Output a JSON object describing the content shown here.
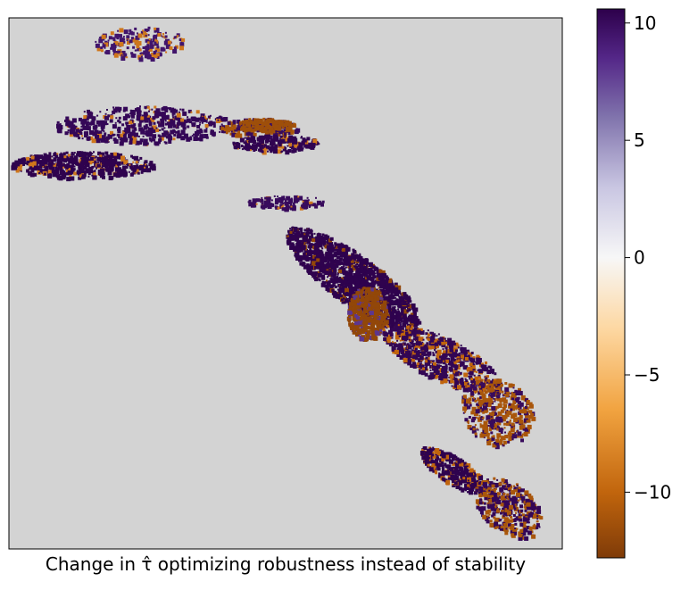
{
  "chart_data": {
    "type": "heatmap",
    "title": "",
    "xlabel_prefix": "Change in ",
    "xlabel_symbol": "τ̂",
    "xlabel_suffix": " optimizing robustness instead of stability",
    "ylabel": "",
    "background_color": "#d3d3d3",
    "colormap": "PuOr",
    "colorbar": {
      "vmin": -12.8,
      "vmax": 10.6,
      "ticks": [
        10,
        5,
        0,
        -5,
        -10
      ],
      "tick_labels": [
        "10",
        "5",
        "0",
        "−5",
        "−10"
      ],
      "colors": [
        {
          "value": -12.8,
          "color": "#7f3b08"
        },
        {
          "value": -10.0,
          "color": "#c1650d"
        },
        {
          "value": -6.5,
          "color": "#f1a340"
        },
        {
          "value": -3.0,
          "color": "#fdd8a3"
        },
        {
          "value": 0.0,
          "color": "#f7f7f7"
        },
        {
          "value": 3.0,
          "color": "#c9c6e2"
        },
        {
          "value": 6.0,
          "color": "#8073ac"
        },
        {
          "value": 8.5,
          "color": "#542788"
        },
        {
          "value": 10.6,
          "color": "#2d004b"
        }
      ]
    },
    "regions": [
      {
        "name": "north-patch",
        "cx": 0.235,
        "cy": 0.045,
        "rx": 0.08,
        "ry": 0.03,
        "angle": 0,
        "n": 220,
        "value_positive": 9.5,
        "value_negative": -9.0,
        "neg_fraction": 0.35
      },
      {
        "name": "upper-ridge",
        "cx": 0.24,
        "cy": 0.2,
        "rx": 0.16,
        "ry": 0.035,
        "angle": 0,
        "n": 520,
        "value_positive": 10.2,
        "value_negative": -9.0,
        "neg_fraction": 0.12
      },
      {
        "name": "upper-east",
        "cx": 0.45,
        "cy": 0.205,
        "rx": 0.07,
        "ry": 0.018,
        "angle": 0,
        "n": 200,
        "value_positive": 10.0,
        "value_negative": -11.0,
        "neg_fraction": 0.45
      },
      {
        "name": "east-orange",
        "cx": 0.46,
        "cy": 0.2,
        "rx": 0.05,
        "ry": 0.012,
        "angle": 0,
        "n": 160,
        "value_positive": 9.8,
        "value_negative": -11.5,
        "neg_fraction": 0.9
      },
      {
        "name": "east-streak",
        "cx": 0.48,
        "cy": 0.235,
        "rx": 0.08,
        "ry": 0.016,
        "angle": 0,
        "n": 220,
        "value_positive": 10.4,
        "value_negative": -9.0,
        "neg_fraction": 0.1
      },
      {
        "name": "west-band",
        "cx": 0.13,
        "cy": 0.275,
        "rx": 0.13,
        "ry": 0.025,
        "angle": 0,
        "n": 560,
        "value_positive": 10.5,
        "value_negative": -9.0,
        "neg_fraction": 0.12
      },
      {
        "name": "central-link",
        "cx": 0.5,
        "cy": 0.345,
        "rx": 0.07,
        "ry": 0.012,
        "angle": 0,
        "n": 120,
        "value_positive": 10.0,
        "value_negative": -9.0,
        "neg_fraction": 0.1
      },
      {
        "name": "central-massif",
        "cx": 0.62,
        "cy": 0.49,
        "rx": 0.15,
        "ry": 0.045,
        "angle": 38,
        "n": 1500,
        "value_positive": 10.5,
        "value_negative": -12.0,
        "neg_fraction": 0.08
      },
      {
        "name": "central-orange",
        "cx": 0.645,
        "cy": 0.555,
        "rx": 0.035,
        "ry": 0.05,
        "angle": 0,
        "n": 480,
        "value_positive": 8.0,
        "value_negative": -12.0,
        "neg_fraction": 0.82
      },
      {
        "name": "southeast-arm",
        "cx": 0.78,
        "cy": 0.64,
        "rx": 0.12,
        "ry": 0.04,
        "angle": 28,
        "n": 700,
        "value_positive": 10.3,
        "value_negative": -10.0,
        "neg_fraction": 0.28
      },
      {
        "name": "southeast-orange",
        "cx": 0.88,
        "cy": 0.74,
        "rx": 0.07,
        "ry": 0.06,
        "angle": 45,
        "n": 420,
        "value_positive": 10.0,
        "value_negative": -11.0,
        "neg_fraction": 0.62
      },
      {
        "name": "south-block",
        "cx": 0.8,
        "cy": 0.85,
        "rx": 0.07,
        "ry": 0.025,
        "angle": 35,
        "n": 330,
        "value_positive": 10.5,
        "value_negative": -10.0,
        "neg_fraction": 0.2
      },
      {
        "name": "south-tail",
        "cx": 0.9,
        "cy": 0.92,
        "rx": 0.07,
        "ry": 0.045,
        "angle": 40,
        "n": 420,
        "value_positive": 10.2,
        "value_negative": -11.0,
        "neg_fraction": 0.45
      }
    ]
  }
}
